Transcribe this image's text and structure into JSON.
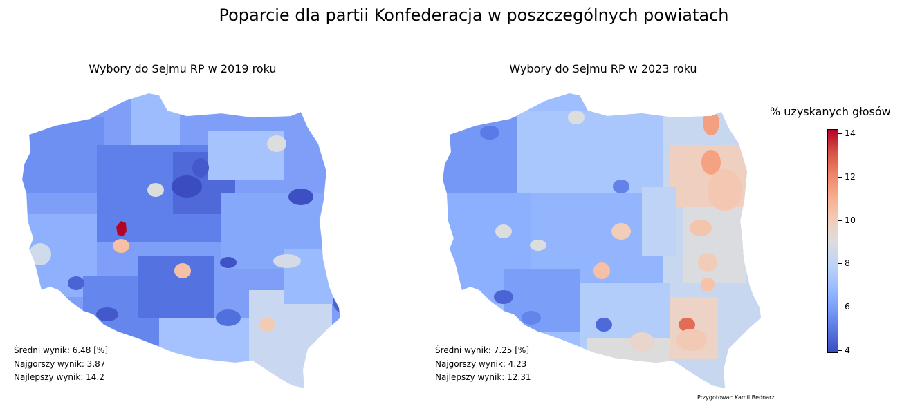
{
  "title": "Poparcie dla partii Konfederacja w poszczególnych powiatach",
  "colorbar": {
    "label": "% uzyskanych głosów",
    "min": 3.87,
    "max": 14.2,
    "ticks": [
      "4",
      "6",
      "8",
      "10",
      "12",
      "14"
    ],
    "colormap": "coolwarm"
  },
  "credit": "Przygotował: Kamil Bednarz",
  "chart_data": [
    {
      "type": "heatmap",
      "title": "Wybory do Sejmu RP w 2019 roku",
      "stats": {
        "mean": "Średni wynik: 6.48 [%]",
        "worst": "Najgorszy wynik: 3.87",
        "best": "Najlepszy wynik: 14.2"
      },
      "highlights": [
        {
          "area": "west-central hotspot",
          "value": 14.2
        },
        {
          "area": "Leszno area",
          "value": 10.2
        },
        {
          "area": "Łódź-south area",
          "value": 10.4
        },
        {
          "area": "south-east (Rzeszów area)",
          "value": 10.1
        }
      ]
    },
    {
      "type": "heatmap",
      "title": "Wybory do Sejmu RP w 2023 roku",
      "stats": {
        "mean": "Średni wynik: 7.25 [%]",
        "worst": "Najgorszy wynik: 4.23",
        "best": "Najlepszy wynik: 12.31"
      },
      "highlights": [
        {
          "area": "south-east hotspot",
          "value": 12.31
        },
        {
          "area": "north-east (Suwałki)",
          "value": 11.3
        },
        {
          "area": "Podlasie region",
          "value": 10.8
        }
      ]
    }
  ]
}
